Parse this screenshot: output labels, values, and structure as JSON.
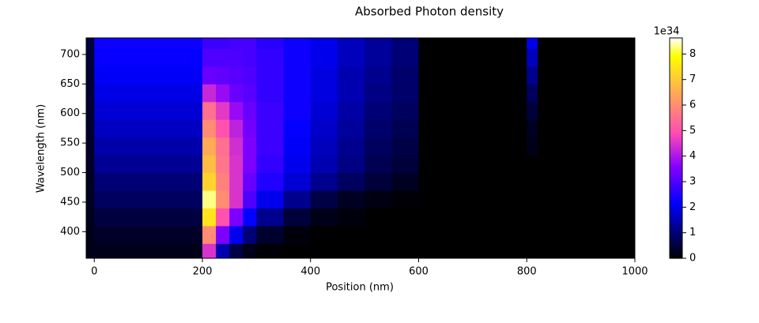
{
  "chart_data": {
    "type": "heatmap",
    "title": "Absorbed Photon density",
    "xlabel": "Position (nm)",
    "ylabel": "Wavelength (nm)",
    "x_edges": [
      -15,
      0,
      200,
      225,
      250,
      275,
      300,
      350,
      400,
      450,
      500,
      550,
      600,
      800,
      820,
      1000
    ],
    "y_edges": [
      355,
      380,
      410,
      440,
      470,
      500,
      530,
      560,
      590,
      620,
      650,
      680,
      710,
      728
    ],
    "z": [
      [
        0.2,
        0.2,
        0.25,
        0.3,
        0.3,
        0.35,
        0.35,
        0.4,
        0.4,
        0.45,
        0.45,
        0.5,
        0.5
      ],
      [
        0.2,
        0.35,
        0.55,
        0.8,
        1.0,
        1.25,
        1.45,
        1.65,
        1.8,
        1.95,
        2.1,
        2.2,
        2.3
      ],
      [
        4.5,
        6.0,
        7.5,
        8.3,
        7.2,
        6.8,
        6.5,
        6.0,
        5.5,
        4.3,
        3.3,
        3.0,
        2.8
      ],
      [
        1.5,
        3.5,
        5.0,
        6.0,
        5.8,
        5.6,
        5.5,
        5.0,
        4.6,
        3.8,
        3.2,
        3.0,
        2.8
      ],
      [
        0.6,
        2.0,
        3.5,
        4.5,
        4.5,
        4.5,
        4.4,
        4.2,
        3.8,
        3.3,
        3.1,
        3.0,
        2.9
      ],
      [
        0.2,
        1.0,
        2.2,
        3.0,
        3.3,
        3.5,
        3.5,
        3.4,
        3.3,
        3.1,
        3.0,
        2.9,
        2.9
      ],
      [
        0.05,
        0.4,
        1.2,
        2.0,
        2.5,
        2.7,
        2.8,
        2.8,
        2.8,
        2.7,
        2.7,
        2.7,
        2.6
      ],
      [
        0,
        0.1,
        0.5,
        1.2,
        1.8,
        2.0,
        2.1,
        2.2,
        2.3,
        2.3,
        2.3,
        2.3,
        2.3
      ],
      [
        0,
        0,
        0.2,
        0.6,
        1.2,
        1.5,
        1.6,
        1.7,
        1.8,
        1.9,
        1.9,
        2.0,
        2.0
      ],
      [
        0,
        0,
        0.1,
        0.3,
        0.8,
        1.1,
        1.2,
        1.3,
        1.4,
        1.5,
        1.5,
        1.6,
        1.6
      ],
      [
        0,
        0,
        0,
        0.15,
        0.5,
        0.7,
        0.8,
        0.9,
        1.0,
        1.1,
        1.2,
        1.3,
        1.3
      ],
      [
        0,
        0,
        0,
        0.05,
        0.3,
        0.5,
        0.6,
        0.7,
        0.8,
        0.9,
        0.9,
        1.0,
        1.0
      ],
      [
        0,
        0,
        0,
        0,
        0,
        0,
        0,
        0,
        0,
        0,
        0,
        0,
        0
      ],
      [
        0,
        0,
        0,
        0,
        0,
        0,
        0.2,
        0.3,
        0.5,
        0.8,
        1.2,
        1.6,
        2.0
      ],
      [
        0,
        0,
        0,
        0,
        0,
        0,
        0,
        0,
        0,
        0,
        0,
        0,
        0
      ]
    ],
    "xlim": [
      -15,
      1000
    ],
    "xticks": [
      0,
      200,
      400,
      600,
      800,
      1000
    ],
    "ylim": [
      355,
      728
    ],
    "yticks": [
      400,
      450,
      500,
      550,
      600,
      650,
      700
    ],
    "colormap": "gnuplot2",
    "clim": [
      0,
      8.63
    ],
    "cticks": [
      0,
      1,
      2,
      3,
      4,
      5,
      6,
      7,
      8
    ],
    "colorbar_scale_label": "1e34"
  }
}
